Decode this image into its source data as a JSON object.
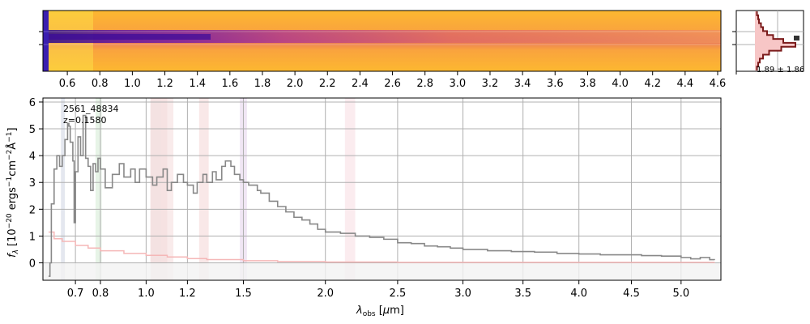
{
  "chart_data": [
    {
      "panel": "2d-spectrum",
      "type": "heatmap",
      "colormap": "plasma",
      "x_tick_labels": [
        "0.6",
        "0.8",
        "1.0",
        "1.2",
        "1.4",
        "1.6",
        "1.8",
        "2.0",
        "2.2",
        "2.4",
        "2.6",
        "2.8",
        "3.0",
        "3.2",
        "3.4",
        "3.6",
        "3.8",
        "4.0",
        "4.2",
        "4.4",
        "4.6"
      ],
      "x_ticks_um": [
        0.6,
        0.8,
        1.0,
        1.2,
        1.4,
        1.6,
        1.8,
        2.0,
        2.2,
        2.4,
        2.6,
        2.8,
        3.0,
        3.2,
        3.4,
        3.6,
        3.8,
        4.0,
        4.2,
        4.4,
        4.6
      ],
      "xlim": [
        0.45,
        4.62
      ]
    },
    {
      "panel": "spatial-profile",
      "type": "line",
      "annotation": "1.89 ± 1.86",
      "profile": [
        0.05,
        0.08,
        0.1,
        0.15,
        0.2,
        0.3,
        0.45,
        0.7,
        1.0,
        0.65,
        0.35,
        0.2,
        0.12,
        0.08,
        0.05
      ]
    },
    {
      "panel": "1d-spectrum",
      "type": "line",
      "title": "",
      "xlabel": "λ_obs [μm]",
      "ylabel": "f_λ [10^-20 ergs^-1 cm^-2 Å^-1]",
      "x_scale": "sqrt",
      "xlim": [
        0.58,
        5.42
      ],
      "ylim": [
        -0.65,
        6.15
      ],
      "x_tick_labels": [
        "0.7",
        "0.8",
        "1.0",
        "1.2",
        "1.5",
        "2.0",
        "2.5",
        "3.0",
        "3.5",
        "4.0",
        "4.5",
        "5.0"
      ],
      "x_ticks_um": [
        0.7,
        0.8,
        1.0,
        1.2,
        1.5,
        2.0,
        2.5,
        3.0,
        3.5,
        4.0,
        4.5,
        5.0
      ],
      "y_tick_labels": [
        "0",
        "1",
        "2",
        "3",
        "4",
        "5",
        "6"
      ],
      "y_ticks": [
        0,
        1,
        2,
        3,
        4,
        5,
        6
      ],
      "grid": true,
      "annotation_id": "2561_48834",
      "annotation_z": "z=0.1580",
      "line_bands": [
        {
          "x0": 0.645,
          "x1": 0.66,
          "color": "#d8dde8"
        },
        {
          "x0": 0.78,
          "x1": 0.805,
          "color": "#ddf0dd"
        },
        {
          "x0": 1.02,
          "x1": 1.1,
          "color": "#f0d6d6"
        },
        {
          "x0": 1.07,
          "x1": 1.13,
          "color": "#f6e2e2"
        },
        {
          "x0": 1.26,
          "x1": 1.31,
          "color": "#f7dede"
        },
        {
          "x0": 1.48,
          "x1": 1.52,
          "color": "#eadcf0"
        },
        {
          "x0": 2.13,
          "x1": 2.2,
          "color": "#fae4e8"
        }
      ],
      "series": [
        {
          "color": "#888888",
          "x": [
            0.6,
            0.605,
            0.61,
            0.62,
            0.63,
            0.64,
            0.65,
            0.66,
            0.67,
            0.675,
            0.68,
            0.69,
            0.695,
            0.7,
            0.71,
            0.72,
            0.73,
            0.74,
            0.75,
            0.76,
            0.77,
            0.78,
            0.79,
            0.8,
            0.82,
            0.85,
            0.88,
            0.9,
            0.93,
            0.95,
            0.97,
            1.0,
            1.03,
            1.05,
            1.08,
            1.1,
            1.12,
            1.15,
            1.18,
            1.2,
            1.23,
            1.25,
            1.28,
            1.3,
            1.33,
            1.35,
            1.38,
            1.4,
            1.43,
            1.45,
            1.48,
            1.5,
            1.53,
            1.55,
            1.58,
            1.6,
            1.65,
            1.7,
            1.75,
            1.8,
            1.85,
            1.9,
            1.95,
            2.0,
            2.1,
            2.2,
            2.3,
            2.4,
            2.5,
            2.6,
            2.7,
            2.8,
            2.9,
            3.0,
            3.2,
            3.4,
            3.6,
            3.8,
            4.0,
            4.2,
            4.4,
            4.6,
            4.8,
            5.0,
            5.1,
            5.2,
            5.3,
            5.35
          ],
          "values": [
            -0.5,
            0.0,
            2.2,
            3.5,
            4.0,
            3.6,
            4.0,
            4.6,
            5.2,
            5.1,
            4.5,
            3.8,
            1.5,
            3.4,
            4.7,
            4.0,
            5.5,
            3.9,
            3.6,
            2.7,
            3.7,
            3.4,
            3.9,
            3.5,
            2.8,
            3.3,
            3.7,
            3.2,
            3.5,
            3.0,
            3.5,
            3.2,
            2.9,
            3.2,
            3.5,
            2.7,
            3.0,
            3.3,
            3.0,
            2.9,
            2.6,
            3.0,
            3.3,
            3.0,
            3.4,
            3.1,
            3.6,
            3.8,
            3.6,
            3.3,
            3.1,
            3.0,
            2.9,
            2.9,
            2.7,
            2.6,
            2.3,
            2.1,
            1.9,
            1.7,
            1.6,
            1.45,
            1.25,
            1.15,
            1.1,
            1.0,
            0.95,
            0.88,
            0.75,
            0.72,
            0.63,
            0.6,
            0.55,
            0.5,
            0.45,
            0.42,
            0.4,
            0.35,
            0.33,
            0.3,
            0.3,
            0.27,
            0.25,
            0.2,
            0.15,
            0.2,
            0.12,
            0.1
          ]
        },
        {
          "color": "#f5b7b7",
          "x": [
            0.6,
            0.62,
            0.65,
            0.7,
            0.75,
            0.8,
            0.9,
            1.0,
            1.1,
            1.2,
            1.3,
            1.5,
            1.7,
            2.0,
            2.5,
            3.0,
            3.5,
            4.0,
            4.5,
            5.0,
            5.35
          ],
          "values": [
            1.15,
            0.9,
            0.8,
            0.65,
            0.55,
            0.45,
            0.35,
            0.28,
            0.22,
            0.16,
            0.12,
            0.08,
            0.05,
            0.03,
            0.02,
            0.02,
            0.02,
            0.02,
            0.02,
            0.02,
            0.03
          ]
        }
      ]
    }
  ]
}
